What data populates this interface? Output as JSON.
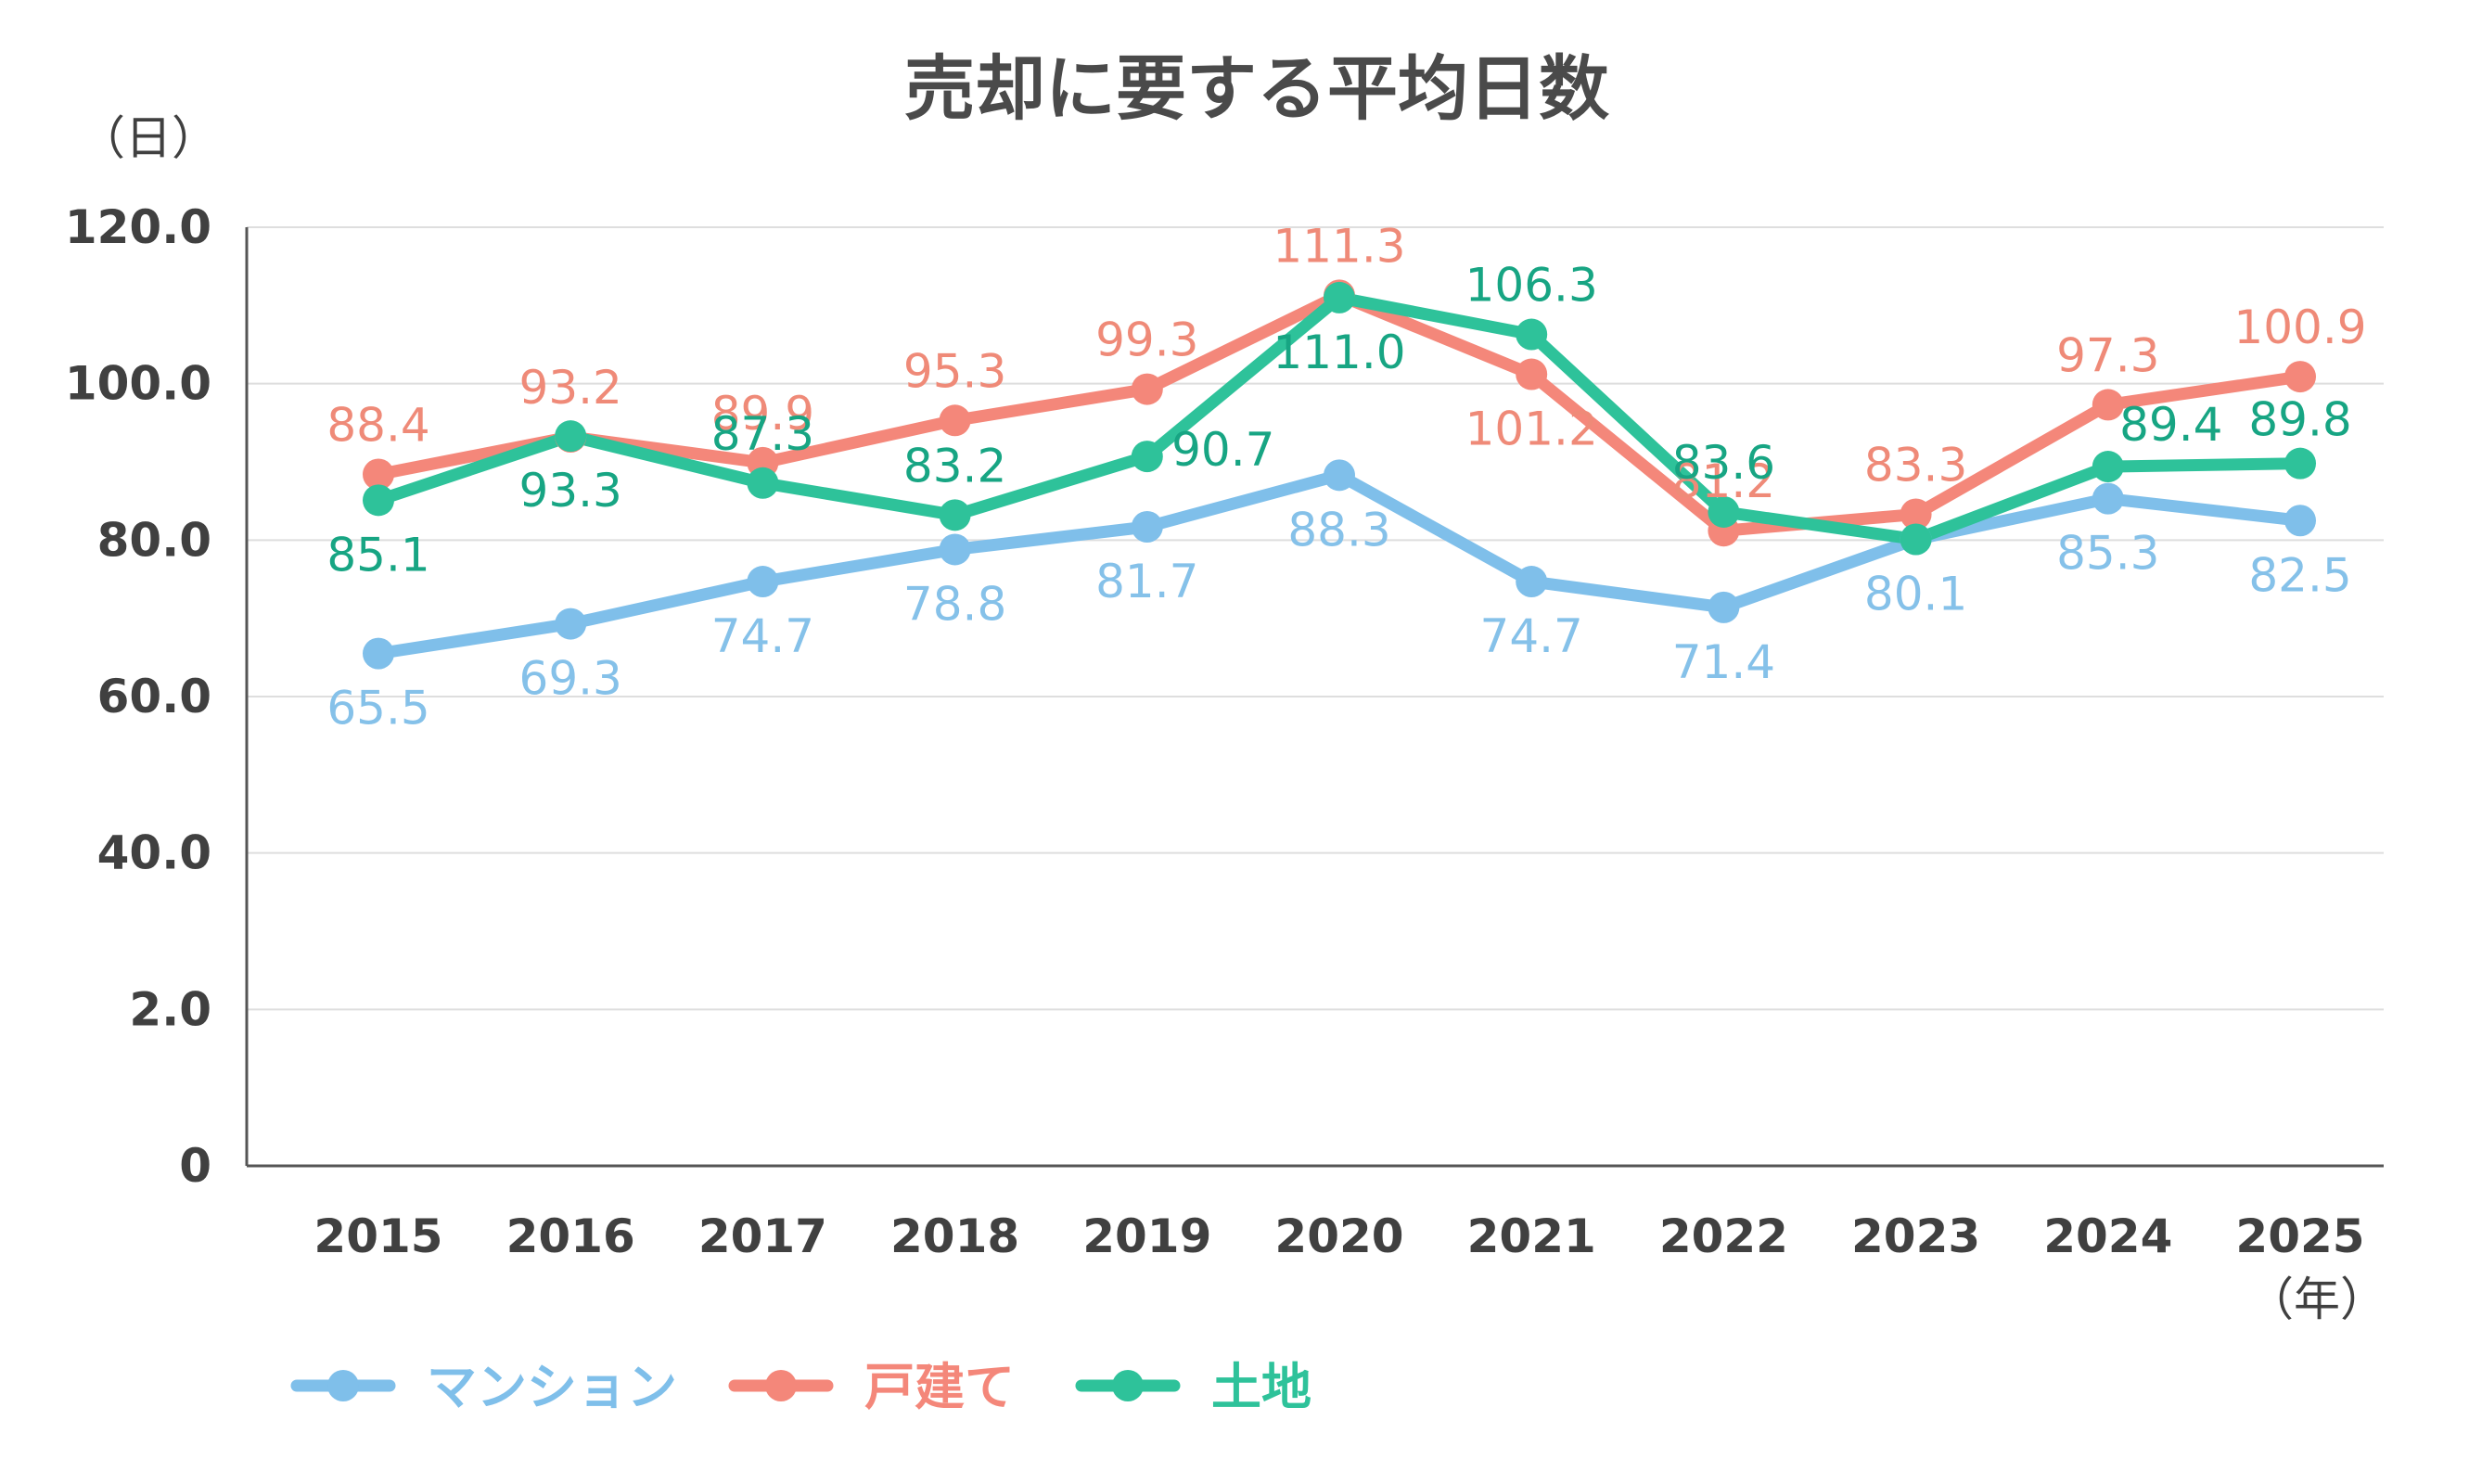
{
  "chart_data": {
    "type": "line",
    "title": "売却に要する平均日数",
    "y_unit": "（日）",
    "x_unit": "（年）",
    "categories": [
      "2015",
      "2016",
      "2017",
      "2018",
      "2019",
      "2020",
      "2021",
      "2022",
      "2023",
      "2024",
      "2025"
    ],
    "y_ticks": [
      "0",
      "2.0",
      "40.0",
      "60.0",
      "80.0",
      "100.0",
      "120.0"
    ],
    "ylim": [
      0,
      120
    ],
    "grid": true,
    "legend_position": "bottom-left",
    "series": [
      {
        "name": "マンション",
        "color": "#7fbfea",
        "label_color": "#85c1e9",
        "values": [
          65.5,
          69.3,
          74.7,
          78.8,
          81.7,
          88.3,
          74.7,
          71.4,
          80.1,
          85.3,
          82.5
        ],
        "labels": [
          "65.5",
          "69.3",
          "74.7",
          "78.8",
          "81.7",
          "88.3",
          "74.7",
          "71.4",
          "80.1",
          "85.3",
          "82.5"
        ]
      },
      {
        "name": "戸建て",
        "color": "#f4877a",
        "label_color": "#ef8a78",
        "values": [
          88.4,
          93.2,
          89.9,
          95.3,
          99.3,
          111.3,
          101.2,
          81.2,
          83.3,
          97.3,
          100.9
        ],
        "labels": [
          "88.4",
          "93.2",
          "89.9",
          "95.3",
          "99.3",
          "111.3",
          "101.2",
          "81.2",
          "83.3",
          "97.3",
          "100.9"
        ]
      },
      {
        "name": "土地",
        "color": "#2ec29a",
        "label_color": "#17a583",
        "values": [
          85.1,
          93.3,
          87.3,
          83.2,
          90.7,
          111.0,
          106.3,
          83.6,
          80.1,
          89.4,
          89.8
        ],
        "labels": [
          "85.1",
          "93.3",
          "87.3",
          "83.2",
          "90.7",
          "111.0",
          "106.3",
          "83.6",
          "",
          "89.4",
          "89.8"
        ]
      }
    ]
  }
}
